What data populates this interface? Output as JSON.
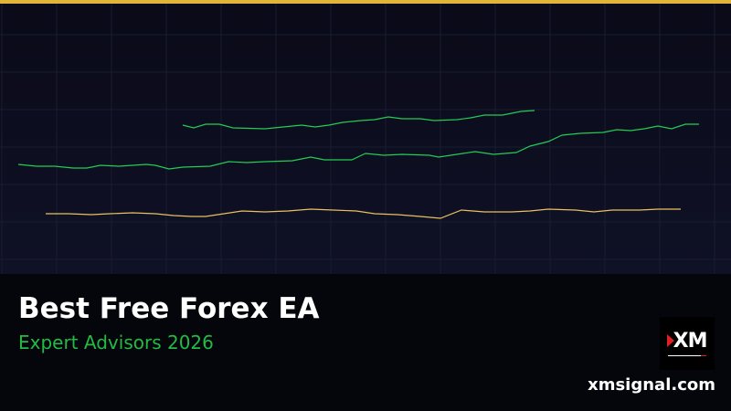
{
  "banner": {
    "title": "Best Free Forex EA",
    "subtitle": "Expert Advisors 2026",
    "site": "xmsignal.com",
    "logo_text": "XM"
  },
  "colors": {
    "accent_gold": "#e0b53a",
    "line_green": "#22cc55",
    "line_gold": "#e8c060",
    "subtitle_green": "#22bb44",
    "logo_red": "#e02020"
  }
}
